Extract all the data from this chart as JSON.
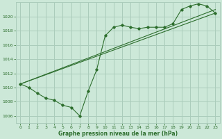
{
  "xlabel": "Graphe pression niveau de la mer (hPa)",
  "ylabel": "",
  "bg_color": "#cce8d8",
  "grid_color": "#aaccbb",
  "line_color": "#2d6e2d",
  "marker_color": "#2d6e2d",
  "text_color": "#2d6e2d",
  "xlim": [
    -0.5,
    23.5
  ],
  "ylim": [
    1005.0,
    1022.0
  ],
  "yticks": [
    1006,
    1008,
    1010,
    1012,
    1014,
    1016,
    1018,
    1020
  ],
  "xticks": [
    0,
    1,
    2,
    3,
    4,
    5,
    6,
    7,
    8,
    9,
    10,
    11,
    12,
    13,
    14,
    15,
    16,
    17,
    18,
    19,
    20,
    21,
    22,
    23
  ],
  "series1_x": [
    0,
    1,
    2,
    3,
    4,
    5,
    6,
    7,
    8,
    9,
    10,
    11,
    12,
    13,
    14,
    15,
    16,
    17,
    18,
    19,
    20,
    21,
    22,
    23
  ],
  "series1_y": [
    1010.5,
    1010.0,
    1009.2,
    1008.5,
    1008.2,
    1007.5,
    1007.2,
    1006.0,
    1009.5,
    1012.5,
    1017.3,
    1018.5,
    1018.8,
    1018.5,
    1018.3,
    1018.5,
    1018.5,
    1018.5,
    1019.0,
    1021.0,
    1021.5,
    1021.8,
    1021.5,
    1020.5
  ],
  "line1_x": [
    0,
    23
  ],
  "line1_y": [
    1010.5,
    1021.0
  ],
  "line2_x": [
    0,
    23
  ],
  "line2_y": [
    1010.5,
    1020.5
  ]
}
